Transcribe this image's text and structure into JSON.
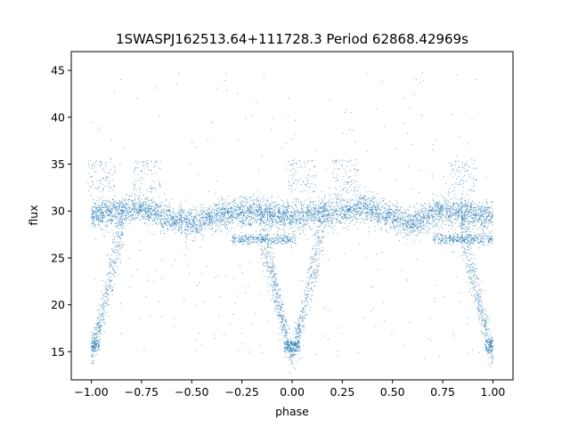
{
  "chart_data": {
    "type": "scatter",
    "title": "1SWASPJ162513.64+111728.3 Period 62868.42969s",
    "xlabel": "phase",
    "ylabel": "flux",
    "xlim": [
      -1.1,
      1.1
    ],
    "ylim": [
      12.0,
      47.0
    ],
    "xticks": [
      -1.0,
      -0.75,
      -0.5,
      -0.25,
      0.0,
      0.25,
      0.5,
      0.75,
      1.0
    ],
    "xtick_labels": [
      "−1.00",
      "−0.75",
      "−0.50",
      "−0.25",
      "0.00",
      "0.25",
      "0.50",
      "0.75",
      "1.00"
    ],
    "yticks": [
      15,
      20,
      25,
      30,
      35,
      40,
      45
    ],
    "ytick_labels": [
      "15",
      "20",
      "25",
      "30",
      "35",
      "40",
      "45"
    ],
    "grid": false,
    "color": "#1f77b4",
    "profile": {
      "description_free": true,
      "baseline_phase": [
        -1.0,
        -0.75,
        -0.6,
        -0.5,
        -0.35,
        -0.2,
        0.0,
        0.2,
        0.35,
        0.5,
        0.6,
        0.75,
        1.0
      ],
      "baseline_flux": [
        29.6,
        30.3,
        29.2,
        28.6,
        29.6,
        29.9,
        29.4,
        29.8,
        30.5,
        29.3,
        28.6,
        30.2,
        29.4
      ],
      "eclipse_centers": [
        -1.0,
        0.0,
        1.0
      ],
      "eclipse_min_flux": 15.0,
      "secondary_branch_flux": 27.0
    }
  }
}
